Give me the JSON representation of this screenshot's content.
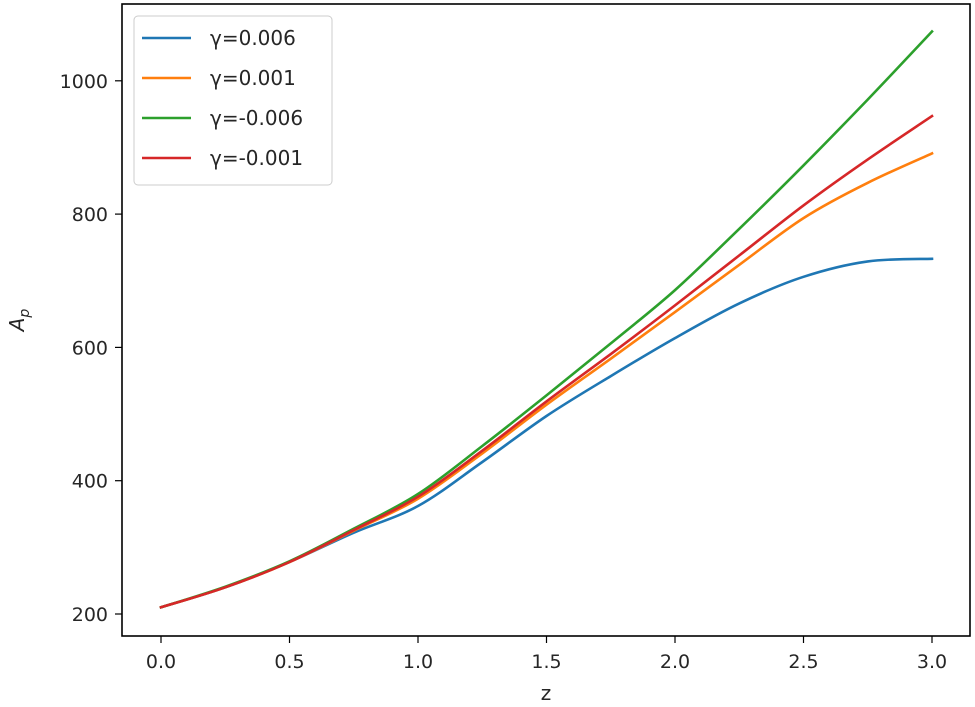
{
  "chart_data": {
    "type": "line",
    "title": "",
    "xlabel": "z",
    "ylabel": "A_p",
    "xlim": [
      -0.15,
      3.15
    ],
    "ylim": [
      165,
      1100
    ],
    "xticks": [
      0.0,
      0.5,
      1.0,
      1.5,
      2.0,
      2.5,
      3.0
    ],
    "xtick_labels": [
      "0.0",
      "0.5",
      "1.0",
      "1.5",
      "2.0",
      "2.5",
      "3.0"
    ],
    "yticks": [
      200,
      400,
      600,
      800,
      1000
    ],
    "ytick_labels": [
      "200",
      "400",
      "600",
      "800",
      "1000"
    ],
    "grid": false,
    "legend_position": "upper left",
    "x": [
      0.0,
      0.25,
      0.5,
      0.75,
      1.0,
      1.25,
      1.5,
      1.75,
      2.0,
      2.25,
      2.5,
      2.75,
      3.0
    ],
    "series": [
      {
        "name": "γ=0.006",
        "color": "#1f77b4",
        "values": [
          210,
          240,
          278,
          322,
          362,
          428,
          497,
          557,
          614,
          666,
          706,
          729,
          733
        ]
      },
      {
        "name": "γ=0.001",
        "color": "#ff7f0e",
        "values": [
          210,
          240,
          278,
          325,
          373,
          441,
          514,
          583,
          653,
          724,
          794,
          847,
          891
        ]
      },
      {
        "name": "γ=-0.006",
        "color": "#2ca02c",
        "values": [
          210,
          241,
          279,
          328,
          380,
          452,
          528,
          606,
          686,
          778,
          873,
          972,
          1074
        ]
      },
      {
        "name": "γ=-0.001",
        "color": "#d62728",
        "values": [
          210,
          240,
          278,
          326,
          376,
          445,
          519,
          590,
          663,
          738,
          813,
          882,
          947
        ]
      }
    ]
  }
}
